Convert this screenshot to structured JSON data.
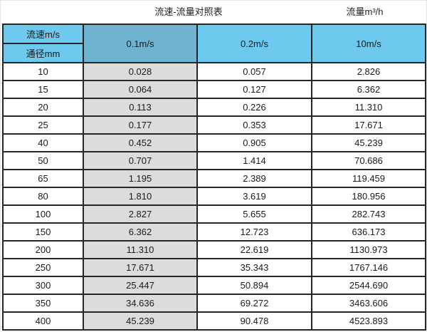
{
  "page": {
    "title_left": "流速-流量对照表",
    "title_right": "流量m³/h"
  },
  "table": {
    "corner_top": "流速m/s",
    "corner_bottom": "通径mm",
    "velocity_columns": [
      "0.1m/s",
      "0.2m/s",
      "10m/s"
    ],
    "rows": [
      {
        "dn": "10",
        "v01": "0.028",
        "v02": "0.057",
        "v10": "2.826"
      },
      {
        "dn": "15",
        "v01": "0.064",
        "v02": "0.127",
        "v10": "6.362"
      },
      {
        "dn": "20",
        "v01": "0.113",
        "v02": "0.226",
        "v10": "11.310"
      },
      {
        "dn": "25",
        "v01": "0.177",
        "v02": "0.353",
        "v10": "17.671"
      },
      {
        "dn": "40",
        "v01": "0.452",
        "v02": "0.905",
        "v10": "45.239"
      },
      {
        "dn": "50",
        "v01": "0.707",
        "v02": "1.414",
        "v10": "70.686"
      },
      {
        "dn": "65",
        "v01": "1.195",
        "v02": "2.389",
        "v10": "119.459"
      },
      {
        "dn": "80",
        "v01": "1.810",
        "v02": "3.619",
        "v10": "180.956"
      },
      {
        "dn": "100",
        "v01": "2.827",
        "v02": "5.655",
        "v10": "282.743"
      },
      {
        "dn": "150",
        "v01": "6.362",
        "v02": "12.723",
        "v10": "636.173"
      },
      {
        "dn": "200",
        "v01": "11.310",
        "v02": "22.619",
        "v10": "1130.973"
      },
      {
        "dn": "250",
        "v01": "17.671",
        "v02": "35.343",
        "v10": "1767.146"
      },
      {
        "dn": "300",
        "v01": "25.447",
        "v02": "50.894",
        "v10": "2544.690"
      },
      {
        "dn": "350",
        "v01": "34.636",
        "v02": "69.272",
        "v10": "3463.606"
      },
      {
        "dn": "400",
        "v01": "45.239",
        "v02": "90.478",
        "v10": "4523.893"
      }
    ]
  },
  "colors": {
    "header_blue_light": "#6DC9EE",
    "header_blue_muted": "#6FB3D1",
    "grey_column": "#DCDCDC",
    "grid_border": "#262626"
  },
  "chart_data": {
    "type": "table",
    "title": "流速-流量对照表",
    "unit_label": "流量m³/h",
    "columns": [
      "通径mm",
      "0.1m/s",
      "0.2m/s",
      "10m/s"
    ],
    "rows": [
      [
        10,
        0.028,
        0.057,
        2.826
      ],
      [
        15,
        0.064,
        0.127,
        6.362
      ],
      [
        20,
        0.113,
        0.226,
        11.31
      ],
      [
        25,
        0.177,
        0.353,
        17.671
      ],
      [
        40,
        0.452,
        0.905,
        45.239
      ],
      [
        50,
        0.707,
        1.414,
        70.686
      ],
      [
        65,
        1.195,
        2.389,
        119.459
      ],
      [
        80,
        1.81,
        3.619,
        180.956
      ],
      [
        100,
        2.827,
        5.655,
        282.743
      ],
      [
        150,
        6.362,
        12.723,
        636.173
      ],
      [
        200,
        11.31,
        22.619,
        1130.973
      ],
      [
        250,
        17.671,
        35.343,
        1767.146
      ],
      [
        300,
        25.447,
        50.894,
        2544.69
      ],
      [
        350,
        34.636,
        69.272,
        3463.606
      ],
      [
        400,
        45.239,
        90.478,
        4523.893
      ]
    ]
  }
}
